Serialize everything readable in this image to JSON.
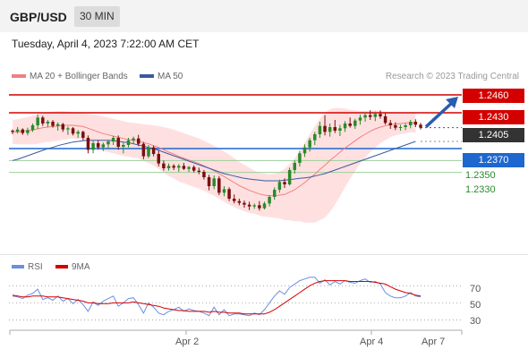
{
  "header": {
    "pair": "GBP/USD",
    "timeframe": "30 MIN"
  },
  "timestamp": "Tuesday, April 4, 2023 7:22:00 AM CET",
  "legend": {
    "ma20_label": "MA 20 + Bollinger Bands",
    "ma50_label": "MA 50",
    "credit": "Research © 2023 Trading Central"
  },
  "colors": {
    "up": "#2a8a2a",
    "down": "#7a0f0f",
    "ma20": "#f08080",
    "ma50": "#3a5aa0",
    "band": "#ffd6d6",
    "resistance": "#d40000",
    "support": "#1d67cf",
    "rsi": "#6a8fe0",
    "rsi_ma": "#d40000",
    "target": "#2a5cb0"
  },
  "levels": {
    "r2": "1.2460",
    "r1": "1.2430",
    "last": "1.2405",
    "s1": "1.2370",
    "s2": "1.2350",
    "s3": "1.2330"
  },
  "rsi_panel": {
    "rsi_label": "RSI",
    "ma_label": "9MA",
    "ticks": [
      "70",
      "50",
      "30"
    ]
  },
  "x_axis": {
    "ticks": [
      "Apr 2",
      "Apr 4",
      "Apr 7"
    ]
  },
  "chart_data": {
    "type": "candlestick",
    "y_range": [
      1.2205,
      1.2475
    ],
    "candles": [
      [
        1.24,
        1.2402,
        1.2394,
        1.2398
      ],
      [
        1.2398,
        1.2406,
        1.2395,
        1.2402
      ],
      [
        1.2402,
        1.2404,
        1.2393,
        1.2396
      ],
      [
        1.2396,
        1.2405,
        1.2392,
        1.2401
      ],
      [
        1.2401,
        1.2412,
        1.2398,
        1.2409
      ],
      [
        1.2409,
        1.2427,
        1.2403,
        1.2422
      ],
      [
        1.2422,
        1.2425,
        1.2408,
        1.2412
      ],
      [
        1.2412,
        1.2418,
        1.2406,
        1.2415
      ],
      [
        1.2415,
        1.2418,
        1.2405,
        1.2408
      ],
      [
        1.2408,
        1.2414,
        1.24,
        1.2411
      ],
      [
        1.2411,
        1.2413,
        1.2398,
        1.2402
      ],
      [
        1.2402,
        1.2407,
        1.2393,
        1.2404
      ],
      [
        1.2404,
        1.2406,
        1.2392,
        1.2395
      ],
      [
        1.2395,
        1.2401,
        1.2388,
        1.2398
      ],
      [
        1.2398,
        1.24,
        1.2384,
        1.2388
      ],
      [
        1.2388,
        1.2392,
        1.2362,
        1.2368
      ],
      [
        1.2368,
        1.2383,
        1.2362,
        1.2379
      ],
      [
        1.2379,
        1.2384,
        1.2368,
        1.2372
      ],
      [
        1.2372,
        1.238,
        1.2366,
        1.2377
      ],
      [
        1.2377,
        1.2385,
        1.2371,
        1.2382
      ],
      [
        1.2382,
        1.2391,
        1.2376,
        1.2388
      ],
      [
        1.2388,
        1.2392,
        1.2368,
        1.2373
      ],
      [
        1.2373,
        1.238,
        1.2362,
        1.2376
      ],
      [
        1.2376,
        1.2388,
        1.2372,
        1.2384
      ],
      [
        1.2384,
        1.239,
        1.2378,
        1.2387
      ],
      [
        1.2387,
        1.2393,
        1.2374,
        1.2378
      ],
      [
        1.2378,
        1.2381,
        1.2352,
        1.2357
      ],
      [
        1.2357,
        1.2376,
        1.2354,
        1.2372
      ],
      [
        1.2372,
        1.2375,
        1.2357,
        1.2361
      ],
      [
        1.2361,
        1.2366,
        1.234,
        1.2345
      ],
      [
        1.2345,
        1.235,
        1.2333,
        1.2337
      ],
      [
        1.2337,
        1.2345,
        1.2333,
        1.2341
      ],
      [
        1.2341,
        1.2344,
        1.2334,
        1.2338
      ],
      [
        1.2338,
        1.2344,
        1.2331,
        1.2341
      ],
      [
        1.2341,
        1.2346,
        1.2334,
        1.2336
      ],
      [
        1.2336,
        1.2341,
        1.2331,
        1.2339
      ],
      [
        1.2339,
        1.2342,
        1.233,
        1.2333
      ],
      [
        1.2333,
        1.2338,
        1.2327,
        1.2331
      ],
      [
        1.2331,
        1.2334,
        1.2318,
        1.2322
      ],
      [
        1.2322,
        1.2326,
        1.23,
        1.2307
      ],
      [
        1.2307,
        1.2325,
        1.2302,
        1.232
      ],
      [
        1.232,
        1.2324,
        1.2292,
        1.2296
      ],
      [
        1.2296,
        1.2307,
        1.229,
        1.2302
      ],
      [
        1.2302,
        1.2305,
        1.2282,
        1.2286
      ],
      [
        1.2286,
        1.2293,
        1.2278,
        1.2282
      ],
      [
        1.2282,
        1.2286,
        1.2275,
        1.2279
      ],
      [
        1.2279,
        1.2283,
        1.2271,
        1.2276
      ],
      [
        1.2276,
        1.2281,
        1.2267,
        1.2273
      ],
      [
        1.2273,
        1.2278,
        1.2269,
        1.2275
      ],
      [
        1.2275,
        1.2282,
        1.2266,
        1.227
      ],
      [
        1.227,
        1.2281,
        1.2268,
        1.2278
      ],
      [
        1.2278,
        1.2292,
        1.2273,
        1.2289
      ],
      [
        1.2289,
        1.2305,
        1.2284,
        1.2301
      ],
      [
        1.2301,
        1.2318,
        1.2296,
        1.2314
      ],
      [
        1.2314,
        1.232,
        1.2304,
        1.231
      ],
      [
        1.231,
        1.2338,
        1.2308,
        1.2334
      ],
      [
        1.2334,
        1.235,
        1.2328,
        1.2346
      ],
      [
        1.2346,
        1.2366,
        1.234,
        1.2362
      ],
      [
        1.2362,
        1.2377,
        1.2356,
        1.2372
      ],
      [
        1.2372,
        1.2388,
        1.2365,
        1.2384
      ],
      [
        1.2384,
        1.2398,
        1.2376,
        1.2394
      ],
      [
        1.2394,
        1.2415,
        1.2388,
        1.2408
      ],
      [
        1.2408,
        1.2426,
        1.2392,
        1.2398
      ],
      [
        1.2398,
        1.2412,
        1.239,
        1.2406
      ],
      [
        1.2406,
        1.2418,
        1.2396,
        1.24
      ],
      [
        1.24,
        1.241,
        1.2391,
        1.2404
      ],
      [
        1.2404,
        1.2416,
        1.2398,
        1.2412
      ],
      [
        1.2412,
        1.2422,
        1.2405,
        1.2408
      ],
      [
        1.2408,
        1.242,
        1.2403,
        1.2417
      ],
      [
        1.2417,
        1.2427,
        1.241,
        1.2422
      ],
      [
        1.2422,
        1.2431,
        1.2415,
        1.2426
      ],
      [
        1.2426,
        1.2434,
        1.2418,
        1.2423
      ],
      [
        1.2423,
        1.2432,
        1.2416,
        1.2428
      ],
      [
        1.2428,
        1.2434,
        1.242,
        1.2424
      ],
      [
        1.2424,
        1.2429,
        1.241,
        1.2413
      ],
      [
        1.2413,
        1.2418,
        1.2403,
        1.2409
      ],
      [
        1.2409,
        1.2414,
        1.2401,
        1.2405
      ],
      [
        1.2405,
        1.241,
        1.24,
        1.2406
      ],
      [
        1.2406,
        1.2412,
        1.2401,
        1.2409
      ],
      [
        1.2409,
        1.2418,
        1.2404,
        1.2415
      ],
      [
        1.2415,
        1.2419,
        1.2406,
        1.241
      ],
      [
        1.241,
        1.2413,
        1.2402,
        1.2405
      ]
    ],
    "ma20": [
      1.2398,
      1.2398,
      1.2399,
      1.24,
      1.2401,
      1.2403,
      1.2405,
      1.2406,
      1.2407,
      1.2408,
      1.2409,
      1.2409,
      1.2409,
      1.2408,
      1.2407,
      1.2404,
      1.2401,
      1.2398,
      1.2395,
      1.2393,
      1.2391,
      1.2389,
      1.2387,
      1.2385,
      1.2384,
      1.2383,
      1.238,
      1.2378,
      1.2375,
      1.2372,
      1.2368,
      1.2364,
      1.2361,
      1.2357,
      1.2354,
      1.2351,
      1.2348,
      1.2345,
      1.2341,
      1.2337,
      1.2333,
      1.2328,
      1.2323,
      1.2318,
      1.2313,
      1.2308,
      1.2304,
      1.23,
      1.2297,
      1.2294,
      1.2292,
      1.2291,
      1.2291,
      1.2292,
      1.2293,
      1.2297,
      1.2301,
      1.2307,
      1.2313,
      1.232,
      1.2327,
      1.2335,
      1.2342,
      1.235,
      1.2357,
      1.2364,
      1.2371,
      1.2377,
      1.2383,
      1.2389,
      1.2394,
      1.2399,
      1.2403,
      1.2406,
      1.2408,
      1.241,
      1.2411,
      1.2412,
      1.2413,
      1.2413,
      1.2413
    ],
    "ma50": [
      1.235,
      1.2352,
      1.2355,
      1.2358,
      1.2361,
      1.2364,
      1.2367,
      1.237,
      1.2372,
      1.2375,
      1.2377,
      1.2379,
      1.2381,
      1.2382,
      1.2383,
      1.2384,
      1.2384,
      1.2384,
      1.2384,
      1.2384,
      1.2383,
      1.2382,
      1.2381,
      1.238,
      1.2378,
      1.2376,
      1.2374,
      1.2372,
      1.237,
      1.2367,
      1.2364,
      1.2361,
      1.2358,
      1.2355,
      1.2352,
      1.2349,
      1.2346,
      1.2343,
      1.234,
      1.2337,
      1.2334,
      1.2331,
      1.2328,
      1.2326,
      1.2324,
      1.2322,
      1.232,
      1.2319,
      1.2318,
      1.2317,
      1.2316,
      1.2316,
      1.2316,
      1.2316,
      1.2317,
      1.2318,
      1.2319,
      1.232,
      1.2321,
      1.2322,
      1.2324,
      1.2326,
      1.2328,
      1.2331,
      1.2334,
      1.2337,
      1.234,
      1.2343,
      1.2346,
      1.2349,
      1.2352,
      1.2355,
      1.2358,
      1.2361,
      1.2364,
      1.2367,
      1.237,
      1.2373,
      1.2376,
      1.2379,
      1.2382
    ],
    "bb_upper": [
      1.2418,
      1.2419,
      1.2421,
      1.2423,
      1.2425,
      1.2428,
      1.243,
      1.2431,
      1.2432,
      1.2433,
      1.2433,
      1.2432,
      1.2431,
      1.243,
      1.2429,
      1.2428,
      1.2427,
      1.2426,
      1.2424,
      1.2422,
      1.242,
      1.2418,
      1.2416,
      1.2414,
      1.2413,
      1.2412,
      1.2411,
      1.241,
      1.2409,
      1.2408,
      1.2406,
      1.2404,
      1.2402,
      1.2399,
      1.2396,
      1.2393,
      1.239,
      1.2387,
      1.2383,
      1.2379,
      1.2375,
      1.237,
      1.2365,
      1.236,
      1.2354,
      1.2348,
      1.2343,
      1.2338,
      1.2333,
      1.233,
      1.2328,
      1.2327,
      1.2328,
      1.2331,
      1.2336,
      1.2344,
      1.2354,
      1.2366,
      1.238,
      1.2394,
      1.2408,
      1.242,
      1.243,
      1.2436,
      1.2438,
      1.2438,
      1.2437,
      1.2435,
      1.2434,
      1.2433,
      1.2433,
      1.2434,
      1.2434,
      1.2433,
      1.2432,
      1.2431,
      1.243,
      1.243,
      1.243,
      1.2429,
      1.2429
    ],
    "bb_lower": [
      1.2378,
      1.2377,
      1.2377,
      1.2377,
      1.2377,
      1.2378,
      1.238,
      1.2381,
      1.2382,
      1.2383,
      1.2385,
      1.2386,
      1.2387,
      1.2386,
      1.2385,
      1.238,
      1.2375,
      1.237,
      1.2366,
      1.2364,
      1.2362,
      1.236,
      1.2358,
      1.2356,
      1.2355,
      1.2354,
      1.2349,
      1.2346,
      1.2341,
      1.2336,
      1.233,
      1.2324,
      1.232,
      1.2315,
      1.2312,
      1.2309,
      1.2306,
      1.2303,
      1.2299,
      1.2295,
      1.2291,
      1.2286,
      1.2281,
      1.2276,
      1.2272,
      1.2268,
      1.2265,
      1.2262,
      1.2261,
      1.2258,
      1.2256,
      1.2255,
      1.2254,
      1.2253,
      1.225,
      1.225,
      1.2248,
      1.2248,
      1.2246,
      1.2246,
      1.2246,
      1.225,
      1.2254,
      1.2264,
      1.2276,
      1.229,
      1.2305,
      1.2319,
      1.2332,
      1.2345,
      1.2355,
      1.2364,
      1.2372,
      1.2379,
      1.2384,
      1.2389,
      1.2392,
      1.2394,
      1.2396,
      1.2397,
      1.2397
    ],
    "resistance": [
      1.246,
      1.243
    ],
    "support": [
      1.237,
      1.235,
      1.233
    ],
    "last_price": 1.2405,
    "rsi": [
      58,
      57,
      55,
      59,
      61,
      66,
      54,
      56,
      53,
      58,
      52,
      55,
      49,
      54,
      48,
      40,
      51,
      47,
      52,
      55,
      58,
      46,
      50,
      55,
      56,
      48,
      38,
      50,
      45,
      38,
      36,
      40,
      42,
      45,
      40,
      43,
      41,
      40,
      38,
      35,
      45,
      36,
      42,
      35,
      37,
      37,
      36,
      35,
      38,
      36,
      42,
      50,
      58,
      64,
      60,
      68,
      72,
      76,
      78,
      80,
      80,
      73,
      77,
      71,
      75,
      72,
      76,
      74,
      73,
      76,
      78,
      74,
      75,
      72,
      62,
      58,
      56,
      56,
      58,
      62,
      58,
      57
    ],
    "rsi_ma": [
      59,
      58,
      57,
      57,
      58,
      58,
      58,
      57,
      57,
      57,
      56,
      55,
      54,
      53,
      52,
      50,
      50,
      49,
      49,
      49,
      50,
      50,
      50,
      50,
      51,
      50,
      49,
      48,
      47,
      46,
      44,
      43,
      42,
      41,
      41,
      40,
      40,
      40,
      40,
      39,
      40,
      39,
      39,
      38,
      38,
      38,
      37,
      37,
      37,
      37,
      37,
      39,
      42,
      46,
      50,
      54,
      58,
      62,
      66,
      70,
      73,
      75,
      76,
      76,
      76,
      76,
      76,
      75,
      75,
      75,
      75,
      75,
      74,
      73,
      72,
      69,
      66,
      64,
      62,
      61,
      59,
      58
    ],
    "rsi_range": [
      20,
      85
    ],
    "rsi_guides": [
      70,
      50,
      30
    ]
  }
}
